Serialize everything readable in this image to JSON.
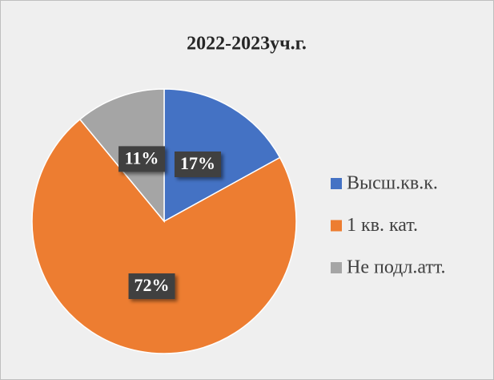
{
  "chart_data": {
    "type": "pie",
    "title": "2022-2023уч.г.",
    "categories": [
      "Высш.кв.к.",
      "1 кв. кат.",
      "Не подл.атт."
    ],
    "values": [
      17,
      72,
      11
    ],
    "value_labels": [
      "17%",
      "72%",
      "11%"
    ],
    "colors": [
      "#4472c4",
      "#ed7d31",
      "#a5a5a5"
    ],
    "legend": "right"
  }
}
